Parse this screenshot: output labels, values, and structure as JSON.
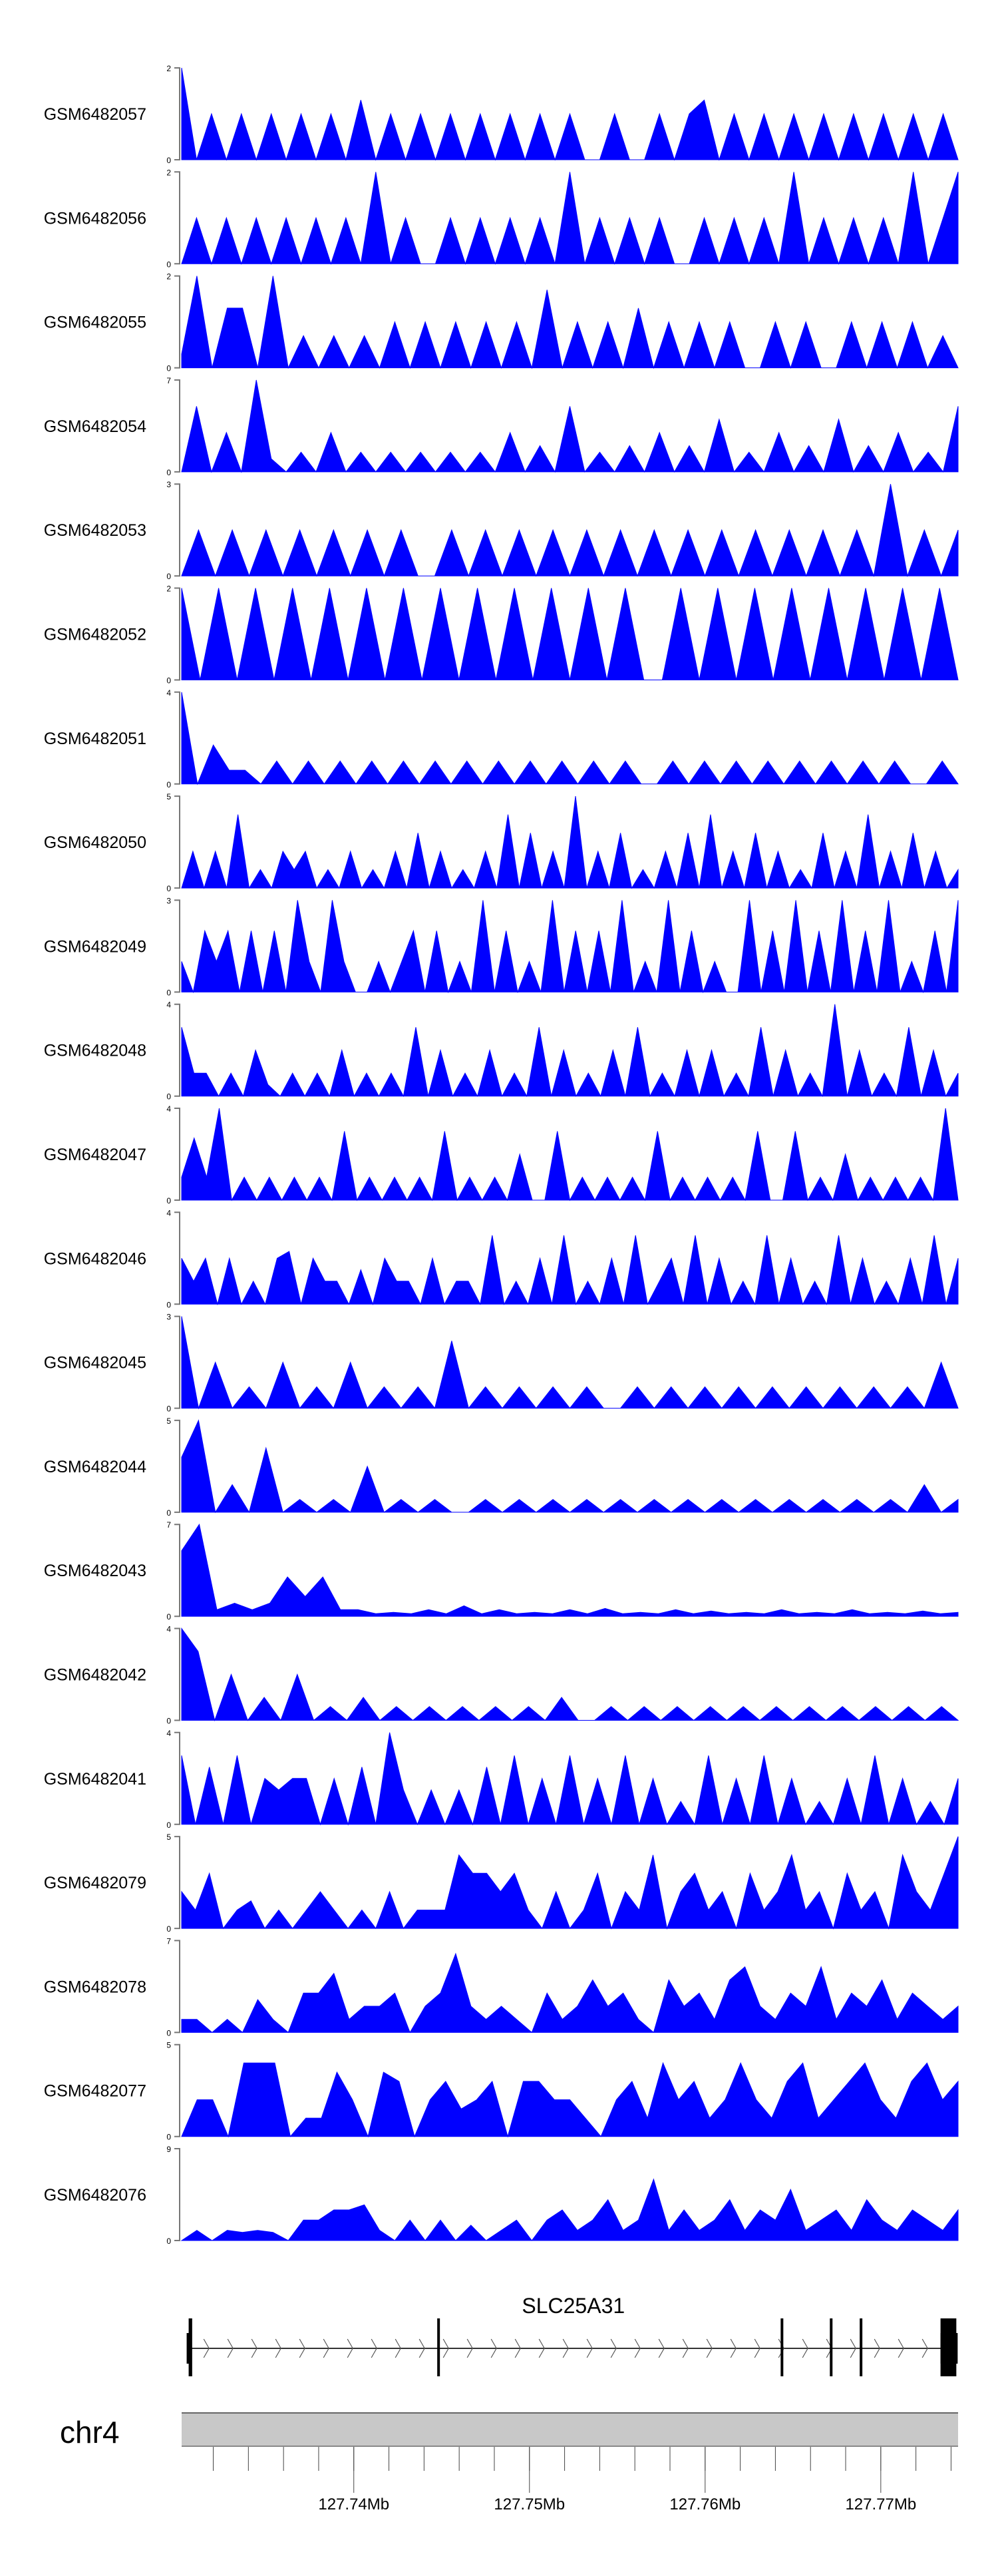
{
  "chart_data": {
    "type": "area",
    "xlim_mb": [
      127.7302,
      127.7744
    ],
    "fill_color": "#0000FF",
    "tracks": [
      {
        "name": "GSM6482057",
        "ymax": 2,
        "values": [
          2,
          0,
          1,
          0,
          1,
          0,
          1,
          0,
          1,
          0,
          1,
          0,
          1.3,
          0,
          1,
          0,
          1,
          0,
          1,
          0,
          1,
          0,
          1,
          0,
          1,
          0,
          1,
          0,
          0,
          1,
          0,
          0,
          1,
          0,
          1,
          1.3,
          0,
          1,
          0,
          1,
          0,
          1,
          0,
          1,
          0,
          1,
          0,
          1,
          0,
          1,
          0,
          1,
          0
        ]
      },
      {
        "name": "GSM6482056",
        "ymax": 2,
        "values": [
          0,
          1,
          0,
          1,
          0,
          1,
          0,
          1,
          0,
          1,
          0,
          1,
          0,
          2,
          0,
          1,
          0,
          0,
          1,
          0,
          1,
          0,
          1,
          0,
          1,
          0,
          2,
          0,
          1,
          0,
          1,
          0,
          1,
          0,
          0,
          1,
          0,
          1,
          0,
          1,
          0,
          2,
          0,
          1,
          0,
          1,
          0,
          1,
          0,
          2,
          0,
          1,
          2
        ]
      },
      {
        "name": "GSM6482055",
        "ymax": 2,
        "values": [
          0.3,
          2,
          0,
          1.3,
          1.3,
          0,
          2,
          0,
          0.7,
          0,
          0.7,
          0,
          0.7,
          0,
          1,
          0,
          1,
          0,
          1,
          0,
          1,
          0,
          1,
          0,
          1.7,
          0,
          1,
          0,
          1,
          0,
          1.3,
          0,
          1,
          0,
          1,
          0,
          1,
          0,
          0,
          1,
          0,
          1,
          0,
          0,
          1,
          0,
          1,
          0,
          1,
          0,
          0.7,
          0
        ]
      },
      {
        "name": "GSM6482054",
        "ymax": 7,
        "values": [
          0,
          5,
          0,
          3,
          0,
          7,
          1,
          0,
          1.5,
          0,
          3,
          0,
          1.5,
          0,
          1.5,
          0,
          1.5,
          0,
          1.5,
          0,
          1.5,
          0,
          3,
          0,
          2,
          0,
          5,
          0,
          1.5,
          0,
          2,
          0,
          3,
          0,
          2,
          0,
          4,
          0,
          1.5,
          0,
          3,
          0,
          2,
          0,
          4,
          0,
          2,
          0,
          3,
          0,
          1.5,
          0,
          5
        ]
      },
      {
        "name": "GSM6482053",
        "ymax": 3,
        "values": [
          0,
          1.5,
          0,
          1.5,
          0,
          1.5,
          0,
          1.5,
          0,
          1.5,
          0,
          1.5,
          0,
          1.5,
          0,
          0,
          1.5,
          0,
          1.5,
          0,
          1.5,
          0,
          1.5,
          0,
          1.5,
          0,
          1.5,
          0,
          1.5,
          0,
          1.5,
          0,
          1.5,
          0,
          1.5,
          0,
          1.5,
          0,
          1.5,
          0,
          1.5,
          0,
          3,
          0,
          1.5,
          0,
          1.5
        ]
      },
      {
        "name": "GSM6482052",
        "ymax": 2,
        "values": [
          2,
          0,
          2,
          0,
          2,
          0,
          2,
          0,
          2,
          0,
          2,
          0,
          2,
          0,
          2,
          0,
          2,
          0,
          2,
          0,
          2,
          0,
          2,
          0,
          2,
          0,
          0,
          2,
          0,
          2,
          0,
          2,
          0,
          2,
          0,
          2,
          0,
          2,
          0,
          2,
          0,
          2,
          0
        ]
      },
      {
        "name": "GSM6482051",
        "ymax": 4,
        "values": [
          4,
          0,
          1.7,
          0.6,
          0.6,
          0,
          1,
          0,
          1,
          0,
          1,
          0,
          1,
          0,
          1,
          0,
          1,
          0,
          1,
          0,
          1,
          0,
          1,
          0,
          1,
          0,
          1,
          0,
          1,
          0,
          0,
          1,
          0,
          1,
          0,
          1,
          0,
          1,
          0,
          1,
          0,
          1,
          0,
          1,
          0,
          1,
          0,
          0,
          1,
          0
        ]
      },
      {
        "name": "GSM6482050",
        "ymax": 5,
        "values": [
          0,
          2,
          0,
          2,
          0,
          4,
          0,
          1,
          0,
          2,
          1,
          2,
          0,
          1,
          0,
          2,
          0,
          1,
          0,
          2,
          0,
          3,
          0,
          2,
          0,
          1,
          0,
          2,
          0,
          4,
          0,
          3,
          0,
          2,
          0,
          5,
          0,
          2,
          0,
          3,
          0,
          1,
          0,
          2,
          0,
          3,
          0,
          4,
          0,
          2,
          0,
          3,
          0,
          2,
          0,
          1,
          0,
          3,
          0,
          2,
          0,
          4,
          0,
          2,
          0,
          3,
          0,
          2,
          0,
          1
        ]
      },
      {
        "name": "GSM6482049",
        "ymax": 3,
        "values": [
          1,
          0,
          2,
          1,
          2,
          0,
          2,
          0,
          2,
          0,
          3,
          1,
          0,
          3,
          1,
          0,
          0,
          1,
          0,
          1,
          2,
          0,
          2,
          0,
          1,
          0,
          3,
          0,
          2,
          0,
          1,
          0,
          3,
          0,
          2,
          0,
          2,
          0,
          3,
          0,
          1,
          0,
          3,
          0,
          2,
          0,
          1,
          0,
          0,
          3,
          0,
          2,
          0,
          3,
          0,
          2,
          0,
          3,
          0,
          2,
          0,
          3,
          0,
          1,
          0,
          2,
          0,
          3
        ]
      },
      {
        "name": "GSM6482048",
        "ymax": 4,
        "values": [
          3,
          1,
          1,
          0,
          1,
          0,
          2,
          0.5,
          0,
          1,
          0,
          1,
          0,
          2,
          0,
          1,
          0,
          1,
          0,
          3,
          0,
          2,
          0,
          1,
          0,
          2,
          0,
          1,
          0,
          3,
          0,
          2,
          0,
          1,
          0,
          2,
          0,
          3,
          0,
          1,
          0,
          2,
          0,
          2,
          0,
          1,
          0,
          3,
          0,
          2,
          0,
          1,
          0,
          4,
          0,
          2,
          0,
          1,
          0,
          3,
          0,
          2,
          0,
          1
        ]
      },
      {
        "name": "GSM6482047",
        "ymax": 4,
        "values": [
          1,
          2.7,
          1,
          4,
          0,
          1,
          0,
          1,
          0,
          1,
          0,
          1,
          0,
          3,
          0,
          1,
          0,
          1,
          0,
          1,
          0,
          3,
          0,
          1,
          0,
          1,
          0,
          2,
          0,
          0,
          3,
          0,
          1,
          0,
          1,
          0,
          1,
          0,
          3,
          0,
          1,
          0,
          1,
          0,
          1,
          0,
          3,
          0,
          0,
          3,
          0,
          1,
          0,
          2,
          0,
          1,
          0,
          1,
          0,
          1,
          0,
          4,
          0
        ]
      },
      {
        "name": "GSM6482046",
        "ymax": 4,
        "values": [
          2,
          1,
          2,
          0,
          2,
          0,
          1,
          0,
          2,
          2.3,
          0,
          2,
          1,
          1,
          0,
          1.5,
          0,
          2,
          1,
          1,
          0,
          2,
          0,
          1,
          1,
          0,
          3,
          0,
          1,
          0,
          2,
          0,
          3,
          0,
          1,
          0,
          2,
          0,
          3,
          0,
          1,
          2,
          0,
          3,
          0,
          2,
          0,
          1,
          0,
          3,
          0,
          2,
          0,
          1,
          0,
          3,
          0,
          2,
          0,
          1,
          0,
          2,
          0,
          3,
          0,
          2
        ]
      },
      {
        "name": "GSM6482045",
        "ymax": 3,
        "values": [
          3,
          0,
          1.5,
          0,
          0.7,
          0,
          1.5,
          0,
          0.7,
          0,
          1.5,
          0,
          0.7,
          0,
          0.7,
          0,
          2.2,
          0,
          0.7,
          0,
          0.7,
          0,
          0.7,
          0,
          0.7,
          0,
          0,
          0.7,
          0,
          0.7,
          0,
          0.7,
          0,
          0.7,
          0,
          0.7,
          0,
          0.7,
          0,
          0.7,
          0,
          0.7,
          0,
          0.7,
          0,
          1.5,
          0
        ]
      },
      {
        "name": "GSM6482044",
        "ymax": 5,
        "values": [
          3,
          5,
          0,
          1.5,
          0,
          3.5,
          0,
          0.7,
          0,
          0.7,
          0,
          2.5,
          0,
          0.7,
          0,
          0.7,
          0,
          0,
          0.7,
          0,
          0.7,
          0,
          0.7,
          0,
          0.7,
          0,
          0.7,
          0,
          0.7,
          0,
          0.7,
          0,
          0.7,
          0,
          0.7,
          0,
          0.7,
          0,
          0.7,
          0,
          0.7,
          0,
          0.7,
          0,
          1.5,
          0,
          0.7
        ]
      },
      {
        "name": "GSM6482043",
        "ymax": 7,
        "values": [
          5,
          7,
          0.5,
          1,
          0.5,
          1,
          3,
          1.5,
          3,
          0.5,
          0.5,
          0.2,
          0.3,
          0.2,
          0.5,
          0.2,
          0.8,
          0.2,
          0.5,
          0.2,
          0.3,
          0.2,
          0.5,
          0.2,
          0.6,
          0.2,
          0.3,
          0.2,
          0.5,
          0.2,
          0.4,
          0.2,
          0.3,
          0.2,
          0.5,
          0.2,
          0.3,
          0.2,
          0.5,
          0.2,
          0.3,
          0.2,
          0.4,
          0.2,
          0.3
        ]
      },
      {
        "name": "GSM6482042",
        "ymax": 4,
        "values": [
          4,
          3,
          0,
          2,
          0,
          1,
          0,
          2,
          0,
          0.6,
          0,
          1,
          0,
          0.6,
          0,
          0.6,
          0,
          0.6,
          0,
          0.6,
          0,
          0.6,
          0,
          1,
          0,
          0,
          0.6,
          0,
          0.6,
          0,
          0.6,
          0,
          0.6,
          0,
          0.6,
          0,
          0.6,
          0,
          0.6,
          0,
          0.6,
          0,
          0.6,
          0,
          0.6,
          0,
          0.6,
          0
        ]
      },
      {
        "name": "GSM6482041",
        "ymax": 4,
        "values": [
          3,
          0,
          2.5,
          0,
          3,
          0,
          2,
          1.5,
          2,
          2,
          0,
          2,
          0,
          2.5,
          0,
          4,
          1.5,
          0,
          1.5,
          0,
          1.5,
          0,
          2.5,
          0,
          3,
          0,
          2,
          0,
          3,
          0,
          2,
          0,
          3,
          0,
          2,
          0,
          1,
          0,
          3,
          0,
          2,
          0,
          3,
          0,
          2,
          0,
          1,
          0,
          2,
          0,
          3,
          0,
          2,
          0,
          1,
          0,
          2
        ]
      },
      {
        "name": "GSM6482079",
        "ymax": 5,
        "values": [
          2,
          1,
          3,
          0,
          1,
          1.5,
          0,
          1,
          0,
          1,
          2,
          1,
          0,
          1,
          0,
          2,
          0,
          1,
          1,
          1,
          4,
          3,
          3,
          2,
          3,
          1,
          0,
          2,
          0,
          1,
          3,
          0,
          2,
          1,
          4,
          0,
          2,
          3,
          1,
          2,
          0,
          3,
          1,
          2,
          4,
          1,
          2,
          0,
          3,
          1,
          2,
          0,
          4,
          2,
          1,
          3,
          5
        ]
      },
      {
        "name": "GSM6482078",
        "ymax": 7,
        "values": [
          1,
          1,
          0,
          1,
          0,
          2.5,
          1,
          0,
          3,
          3,
          4.5,
          1,
          2,
          2,
          3,
          0,
          2,
          3,
          6,
          2,
          1,
          2,
          1,
          0,
          3,
          1,
          2,
          4,
          2,
          3,
          1,
          0,
          4,
          2,
          3,
          1,
          4,
          5,
          2,
          1,
          3,
          2,
          5,
          1,
          3,
          2,
          4,
          1,
          3,
          2,
          1,
          2
        ]
      },
      {
        "name": "GSM6482077",
        "ymax": 5,
        "values": [
          0,
          2,
          2,
          0,
          4,
          4,
          4,
          0,
          1,
          1,
          3.5,
          2,
          0,
          3.5,
          3,
          0,
          2,
          3,
          1.5,
          2,
          3,
          0,
          3,
          3,
          2,
          2,
          1,
          0,
          2,
          3,
          1,
          4,
          2,
          3,
          1,
          2,
          4,
          2,
          1,
          3,
          4,
          1,
          2,
          3,
          4,
          2,
          1,
          3,
          4,
          2,
          3
        ]
      },
      {
        "name": "GSM6482076",
        "ymax": 9,
        "values": [
          0,
          1,
          0,
          1,
          0.8,
          1,
          0.8,
          0,
          2,
          2,
          3,
          3,
          3.5,
          1,
          0,
          2,
          0,
          2,
          0,
          1.5,
          0,
          1,
          2,
          0,
          2,
          3,
          1,
          2,
          4,
          1,
          2,
          6,
          1,
          3,
          1,
          2,
          4,
          1,
          3,
          2,
          5,
          1,
          2,
          3,
          1,
          4,
          2,
          1,
          3,
          2,
          1,
          3
        ]
      }
    ],
    "y_tick_min": 0,
    "gene": {
      "name": "SLC25A31",
      "start_mb": 127.7307,
      "end_mb": 127.7743,
      "strand": "+",
      "exons_mb": [
        [
          127.7306,
          127.7308
        ],
        [
          127.74475,
          127.74478
        ],
        [
          127.7643,
          127.76433
        ],
        [
          127.7671,
          127.76713
        ],
        [
          127.7688,
          127.76882
        ],
        [
          127.7734,
          127.7743
        ]
      ]
    },
    "axis": {
      "chromosome": "chr4",
      "minor_tick_step_mb": 0.002,
      "major_ticks_mb": [
        127.74,
        127.75,
        127.76,
        127.77
      ],
      "major_tick_labels": [
        "127.74Mb",
        "127.75Mb",
        "127.76Mb",
        "127.77Mb"
      ]
    }
  }
}
